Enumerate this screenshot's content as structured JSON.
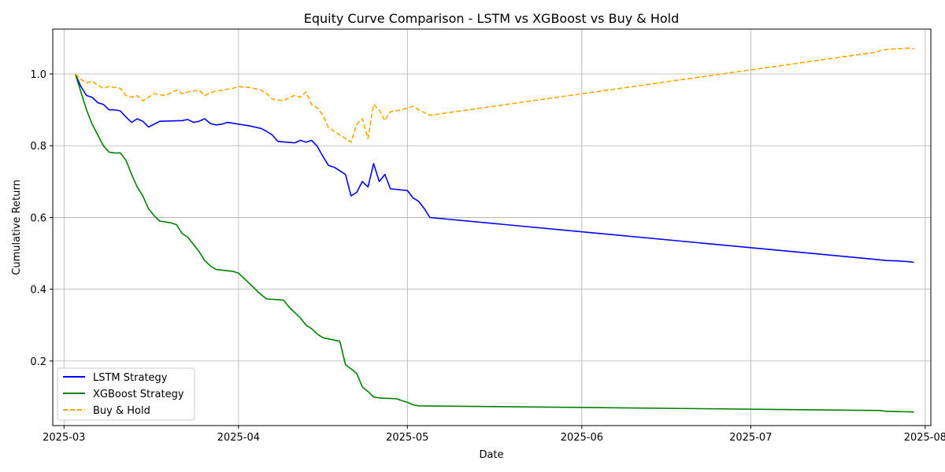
{
  "chart_data": {
    "type": "line",
    "title": "Equity Curve Comparison - LSTM vs XGBoost vs Buy & Hold",
    "xlabel": "Date",
    "ylabel": "Cumulative Return",
    "x_ticks": [
      "2025-03",
      "2025-04",
      "2025-05",
      "2025-06",
      "2025-07",
      "2025-08"
    ],
    "y_ticks": [
      "0.2",
      "0.4",
      "0.6",
      "0.8",
      "1.0"
    ],
    "x_range": [
      "2025-02-27",
      "2025-08-02"
    ],
    "ylim": [
      0.02,
      1.125
    ],
    "grid": true,
    "legend_position": "lower-left",
    "series": [
      {
        "name": "LSTM Strategy",
        "color": "#0000ff",
        "style": "solid",
        "points": [
          [
            "2025-03-03",
            1.0
          ],
          [
            "2025-03-04",
            0.965
          ],
          [
            "2025-03-05",
            0.94
          ],
          [
            "2025-03-06",
            0.935
          ],
          [
            "2025-03-07",
            0.92
          ],
          [
            "2025-03-08",
            0.915
          ],
          [
            "2025-03-09",
            0.9
          ],
          [
            "2025-03-10",
            0.9
          ],
          [
            "2025-03-11",
            0.897
          ],
          [
            "2025-03-12",
            0.88
          ],
          [
            "2025-03-13",
            0.865
          ],
          [
            "2025-03-14",
            0.875
          ],
          [
            "2025-03-15",
            0.868
          ],
          [
            "2025-03-16",
            0.852
          ],
          [
            "2025-03-17",
            0.86
          ],
          [
            "2025-03-18",
            0.868
          ],
          [
            "2025-03-22",
            0.87
          ],
          [
            "2025-03-23",
            0.873
          ],
          [
            "2025-03-24",
            0.865
          ],
          [
            "2025-03-25",
            0.868
          ],
          [
            "2025-03-26",
            0.875
          ],
          [
            "2025-03-27",
            0.862
          ],
          [
            "2025-03-28",
            0.858
          ],
          [
            "2025-03-29",
            0.86
          ],
          [
            "2025-03-30",
            0.865
          ],
          [
            "2025-04-03",
            0.855
          ],
          [
            "2025-04-05",
            0.848
          ],
          [
            "2025-04-06",
            0.84
          ],
          [
            "2025-04-07",
            0.83
          ],
          [
            "2025-04-08",
            0.812
          ],
          [
            "2025-04-11",
            0.808
          ],
          [
            "2025-04-12",
            0.815
          ],
          [
            "2025-04-13",
            0.81
          ],
          [
            "2025-04-14",
            0.815
          ],
          [
            "2025-04-15",
            0.798
          ],
          [
            "2025-04-16",
            0.77
          ],
          [
            "2025-04-17",
            0.745
          ],
          [
            "2025-04-18",
            0.74
          ],
          [
            "2025-04-20",
            0.72
          ],
          [
            "2025-04-21",
            0.66
          ],
          [
            "2025-04-22",
            0.67
          ],
          [
            "2025-04-23",
            0.7
          ],
          [
            "2025-04-24",
            0.685
          ],
          [
            "2025-04-25",
            0.75
          ],
          [
            "2025-04-26",
            0.7
          ],
          [
            "2025-04-27",
            0.72
          ],
          [
            "2025-04-28",
            0.68
          ],
          [
            "2025-05-01",
            0.675
          ],
          [
            "2025-05-02",
            0.655
          ],
          [
            "2025-05-03",
            0.645
          ],
          [
            "2025-05-04",
            0.625
          ],
          [
            "2025-05-05",
            0.6
          ],
          [
            "2025-07-24",
            0.482
          ],
          [
            "2025-07-25",
            0.48
          ],
          [
            "2025-07-27",
            0.479
          ],
          [
            "2025-07-29",
            0.477
          ],
          [
            "2025-07-30",
            0.475
          ]
        ]
      },
      {
        "name": "XGBoost Strategy",
        "color": "#008000",
        "style": "solid",
        "points": [
          [
            "2025-03-03",
            1.0
          ],
          [
            "2025-03-04",
            0.95
          ],
          [
            "2025-03-05",
            0.9
          ],
          [
            "2025-03-06",
            0.86
          ],
          [
            "2025-03-07",
            0.83
          ],
          [
            "2025-03-08",
            0.8
          ],
          [
            "2025-03-09",
            0.782
          ],
          [
            "2025-03-10",
            0.78
          ],
          [
            "2025-03-11",
            0.78
          ],
          [
            "2025-03-12",
            0.76
          ],
          [
            "2025-03-13",
            0.72
          ],
          [
            "2025-03-14",
            0.685
          ],
          [
            "2025-03-15",
            0.66
          ],
          [
            "2025-03-16",
            0.625
          ],
          [
            "2025-03-17",
            0.605
          ],
          [
            "2025-03-18",
            0.59
          ],
          [
            "2025-03-20",
            0.585
          ],
          [
            "2025-03-21",
            0.58
          ],
          [
            "2025-03-22",
            0.555
          ],
          [
            "2025-03-23",
            0.545
          ],
          [
            "2025-03-24",
            0.525
          ],
          [
            "2025-03-25",
            0.505
          ],
          [
            "2025-03-26",
            0.48
          ],
          [
            "2025-03-27",
            0.465
          ],
          [
            "2025-03-28",
            0.455
          ],
          [
            "2025-03-31",
            0.45
          ],
          [
            "2025-04-01",
            0.445
          ],
          [
            "2025-04-02",
            0.43
          ],
          [
            "2025-04-03",
            0.415
          ],
          [
            "2025-04-04",
            0.4
          ],
          [
            "2025-04-05",
            0.385
          ],
          [
            "2025-04-06",
            0.373
          ],
          [
            "2025-04-09",
            0.37
          ],
          [
            "2025-04-10",
            0.35
          ],
          [
            "2025-04-11",
            0.335
          ],
          [
            "2025-04-12",
            0.32
          ],
          [
            "2025-04-13",
            0.3
          ],
          [
            "2025-04-14",
            0.29
          ],
          [
            "2025-04-15",
            0.275
          ],
          [
            "2025-04-16",
            0.265
          ],
          [
            "2025-04-19",
            0.255
          ],
          [
            "2025-04-20",
            0.19
          ],
          [
            "2025-04-21",
            0.178
          ],
          [
            "2025-04-22",
            0.165
          ],
          [
            "2025-04-23",
            0.128
          ],
          [
            "2025-04-24",
            0.115
          ],
          [
            "2025-04-25",
            0.1
          ],
          [
            "2025-04-26",
            0.097
          ],
          [
            "2025-04-29",
            0.095
          ],
          [
            "2025-04-30",
            0.09
          ],
          [
            "2025-05-01",
            0.085
          ],
          [
            "2025-05-02",
            0.078
          ],
          [
            "2025-05-03",
            0.075
          ],
          [
            "2025-07-24",
            0.062
          ],
          [
            "2025-07-25",
            0.06
          ],
          [
            "2025-07-30",
            0.058
          ]
        ]
      },
      {
        "name": "Buy & Hold",
        "color": "#ffa500",
        "style": "dashed",
        "points": [
          [
            "2025-03-03",
            1.0
          ],
          [
            "2025-03-04",
            0.985
          ],
          [
            "2025-03-05",
            0.975
          ],
          [
            "2025-03-06",
            0.98
          ],
          [
            "2025-03-07",
            0.968
          ],
          [
            "2025-03-08",
            0.96
          ],
          [
            "2025-03-09",
            0.965
          ],
          [
            "2025-03-11",
            0.96
          ],
          [
            "2025-03-12",
            0.94
          ],
          [
            "2025-03-13",
            0.935
          ],
          [
            "2025-03-14",
            0.94
          ],
          [
            "2025-03-15",
            0.925
          ],
          [
            "2025-03-16",
            0.935
          ],
          [
            "2025-03-17",
            0.945
          ],
          [
            "2025-03-19",
            0.94
          ],
          [
            "2025-03-21",
            0.955
          ],
          [
            "2025-03-22",
            0.945
          ],
          [
            "2025-03-23",
            0.95
          ],
          [
            "2025-03-25",
            0.955
          ],
          [
            "2025-03-26",
            0.94
          ],
          [
            "2025-03-27",
            0.948
          ],
          [
            "2025-03-28",
            0.952
          ],
          [
            "2025-03-31",
            0.96
          ],
          [
            "2025-04-01",
            0.965
          ],
          [
            "2025-04-03",
            0.962
          ],
          [
            "2025-04-05",
            0.955
          ],
          [
            "2025-04-06",
            0.945
          ],
          [
            "2025-04-07",
            0.93
          ],
          [
            "2025-04-09",
            0.925
          ],
          [
            "2025-04-10",
            0.935
          ],
          [
            "2025-04-11",
            0.94
          ],
          [
            "2025-04-12",
            0.935
          ],
          [
            "2025-04-13",
            0.95
          ],
          [
            "2025-04-14",
            0.915
          ],
          [
            "2025-04-15",
            0.905
          ],
          [
            "2025-04-16",
            0.885
          ],
          [
            "2025-04-17",
            0.85
          ],
          [
            "2025-04-18",
            0.84
          ],
          [
            "2025-04-20",
            0.82
          ],
          [
            "2025-04-21",
            0.81
          ],
          [
            "2025-04-22",
            0.86
          ],
          [
            "2025-04-23",
            0.875
          ],
          [
            "2025-04-24",
            0.82
          ],
          [
            "2025-04-25",
            0.915
          ],
          [
            "2025-04-26",
            0.9
          ],
          [
            "2025-04-27",
            0.87
          ],
          [
            "2025-04-28",
            0.895
          ],
          [
            "2025-04-30",
            0.9
          ],
          [
            "2025-05-01",
            0.905
          ],
          [
            "2025-05-02",
            0.91
          ],
          [
            "2025-05-03",
            0.9
          ],
          [
            "2025-05-05",
            0.885
          ],
          [
            "2025-07-23",
            1.06
          ],
          [
            "2025-07-24",
            1.065
          ],
          [
            "2025-07-25",
            1.068
          ],
          [
            "2025-07-27",
            1.07
          ],
          [
            "2025-07-29",
            1.072
          ],
          [
            "2025-07-30",
            1.07
          ]
        ]
      }
    ]
  }
}
